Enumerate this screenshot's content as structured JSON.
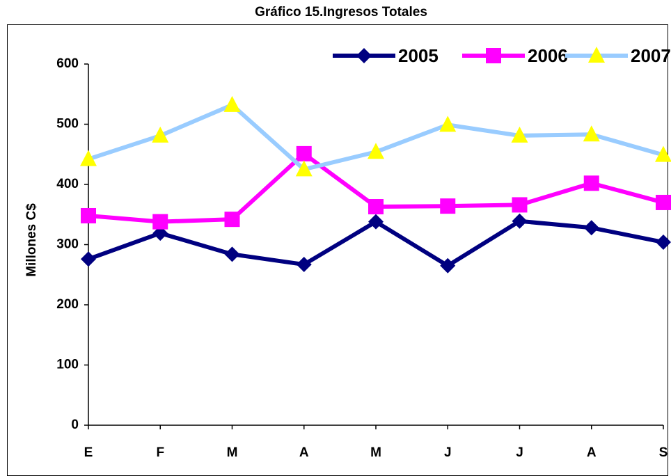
{
  "chart_data": {
    "type": "line",
    "title": "Gráfico 15.Ingresos Totales",
    "y_label": "Millones C$",
    "categories": [
      "E",
      "F",
      "M",
      "A",
      "M",
      "J",
      "J",
      "A",
      "S"
    ],
    "series": [
      {
        "name": "2005",
        "color": "#000080",
        "marker": "diamond",
        "marker_color": "#000080",
        "values": [
          276,
          319,
          284,
          267,
          338,
          265,
          339,
          328,
          304
        ]
      },
      {
        "name": "2006",
        "color": "#ff00ff",
        "marker": "square",
        "marker_color": "#ff00ff",
        "values": [
          348,
          338,
          342,
          451,
          363,
          364,
          366,
          402,
          370
        ]
      },
      {
        "name": "2007",
        "color": "#99ccff",
        "marker": "triangle",
        "marker_color": "#ffff00",
        "values": [
          442,
          481,
          532,
          425,
          454,
          499,
          481,
          483,
          449
        ]
      }
    ],
    "ylim": [
      0,
      600
    ],
    "yticks": [
      0,
      100,
      200,
      300,
      400,
      500,
      600
    ],
    "legend": "top-right"
  }
}
